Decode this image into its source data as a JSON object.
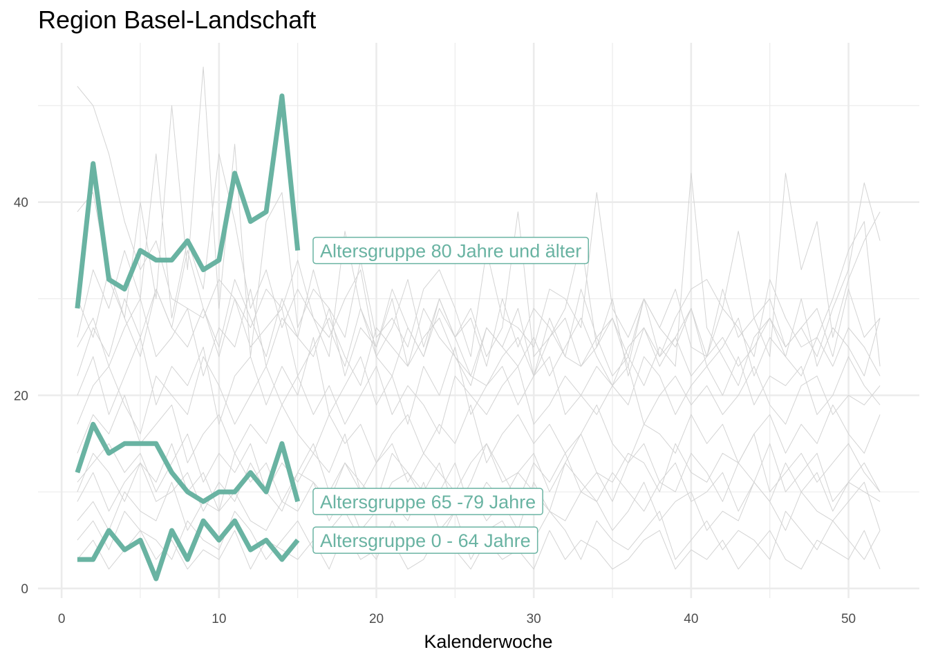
{
  "chart_data": {
    "type": "line",
    "title": "Region Basel-Landschaft",
    "xlabel": "Kalenderwoche",
    "ylabel": "",
    "xlim": [
      -1.5,
      54.5
    ],
    "ylim": [
      -1,
      56.5
    ],
    "x_ticks": [
      0,
      10,
      20,
      30,
      40,
      50
    ],
    "y_ticks": [
      0,
      20,
      40
    ],
    "x_minor_ticks": [
      5,
      15,
      25,
      35,
      45
    ],
    "y_minor_ticks": [
      10,
      30,
      50
    ],
    "grid": true,
    "highlight_color": "#69b3a2",
    "background_color": "#d3d3d3",
    "highlight_series": [
      {
        "name": "Altersgruppe 80 Jahre und älter",
        "x": [
          1,
          2,
          3,
          4,
          5,
          6,
          7,
          8,
          9,
          10,
          11,
          12,
          13,
          14,
          15
        ],
        "values": [
          29,
          44,
          32,
          31,
          35,
          34,
          34,
          36,
          33,
          34,
          43,
          38,
          39,
          51,
          35
        ]
      },
      {
        "name": "Altersgruppe 65 -79 Jahre",
        "x": [
          1,
          2,
          3,
          4,
          5,
          6,
          7,
          8,
          9,
          10,
          11,
          12,
          13,
          14,
          15
        ],
        "values": [
          12,
          17,
          14,
          15,
          15,
          15,
          12,
          10,
          9,
          10,
          10,
          12,
          10,
          15,
          9
        ]
      },
      {
        "name": "Altersgruppe 0 - 64 Jahre",
        "x": [
          1,
          2,
          3,
          4,
          5,
          6,
          7,
          8,
          9,
          10,
          11,
          12,
          13,
          14,
          15
        ],
        "values": [
          3,
          3,
          6,
          4,
          5,
          1,
          6,
          3,
          7,
          5,
          7,
          4,
          5,
          3,
          5
        ]
      }
    ],
    "background_series": [
      {
        "x_start": 1,
        "values": [
          52,
          50,
          45,
          38,
          33,
          36,
          30,
          29,
          28,
          32,
          30,
          27,
          31,
          29,
          34,
          28,
          26,
          30,
          33,
          24,
          22,
          27,
          24,
          29,
          26,
          22,
          21,
          24,
          26,
          22,
          28,
          24,
          23,
          26,
          22,
          24,
          21,
          25,
          23,
          43,
          27,
          24,
          21,
          26,
          28,
          25,
          27,
          24,
          29,
          33,
          42,
          36
        ]
      },
      {
        "x_start": 1,
        "values": [
          39,
          41,
          32,
          28,
          40,
          30,
          50,
          33,
          54,
          29,
          46,
          24,
          38,
          41,
          27,
          31,
          29,
          26,
          34,
          26,
          28,
          25,
          31,
          33,
          29,
          24,
          35,
          28,
          27,
          25,
          31,
          30,
          27,
          41,
          29,
          26,
          30,
          24,
          28,
          31,
          32,
          29,
          37,
          28,
          24,
          43,
          33,
          38,
          26,
          32,
          36,
          39
        ]
      },
      {
        "x_start": 1,
        "values": [
          26,
          33,
          29,
          35,
          30,
          45,
          28,
          36,
          31,
          45,
          38,
          29,
          33,
          27,
          31,
          28,
          24,
          37,
          29,
          24,
          27,
          32,
          25,
          30,
          26,
          29,
          24,
          27,
          39,
          24,
          26,
          29,
          36,
          25,
          28,
          24,
          30,
          27,
          31,
          25,
          24,
          29,
          27,
          24,
          32,
          28,
          25,
          26,
          30,
          35,
          38,
          23
        ]
      },
      {
        "x_start": 1,
        "values": [
          22,
          27,
          24,
          30,
          26,
          31,
          27,
          25,
          29,
          24,
          30,
          25,
          27,
          29,
          22,
          25,
          28,
          24,
          21,
          27,
          25,
          23,
          29,
          26,
          24,
          22,
          27,
          25,
          23,
          26,
          22,
          25,
          28,
          24,
          21,
          25,
          27,
          23,
          26,
          22,
          24,
          26,
          23,
          25,
          28,
          24,
          22,
          26,
          23,
          27,
          25,
          22
        ]
      },
      {
        "x_start": 1,
        "values": [
          20,
          24,
          18,
          22,
          26,
          19,
          23,
          21,
          25,
          17,
          22,
          24,
          19,
          23,
          20,
          26,
          18,
          21,
          24,
          19,
          22,
          17,
          23,
          20,
          25,
          18,
          21,
          23,
          19,
          22,
          24,
          18,
          20,
          23,
          21,
          19,
          24,
          22,
          18,
          21,
          23,
          20,
          24,
          19,
          22,
          21,
          23,
          18,
          20,
          24,
          21,
          19
        ]
      },
      {
        "x_start": 1,
        "values": [
          17,
          21,
          23,
          19,
          16,
          22,
          20,
          18,
          24,
          21,
          17,
          20,
          23,
          19,
          22,
          18,
          21,
          17,
          20,
          23,
          18,
          21,
          19,
          16,
          22,
          20,
          18,
          21,
          23,
          17,
          19,
          22,
          20,
          18,
          21,
          23,
          17,
          20,
          22,
          19,
          21,
          18,
          20,
          23,
          19,
          17,
          21,
          22,
          18,
          20,
          19,
          21
        ]
      },
      {
        "x_start": 1,
        "values": [
          14,
          18,
          16,
          20,
          15,
          17,
          19,
          13,
          16,
          18,
          14,
          17,
          15,
          19,
          16,
          14,
          18,
          15,
          17,
          13,
          16,
          18,
          14,
          17,
          15,
          19,
          13,
          16,
          18,
          15,
          17,
          14,
          16,
          19,
          15,
          13,
          17,
          16,
          14,
          18,
          15,
          17,
          13,
          16,
          18,
          14,
          17,
          15,
          19,
          16,
          14,
          18
        ]
      },
      {
        "x_start": 1,
        "values": [
          11,
          13,
          15,
          12,
          14,
          10,
          13,
          16,
          11,
          14,
          12,
          15,
          10,
          13,
          11,
          14,
          12,
          16,
          10,
          13,
          15,
          11,
          14,
          12,
          10,
          13,
          15,
          11,
          12,
          14,
          10,
          13,
          16,
          12,
          11,
          14,
          13,
          10,
          15,
          12,
          11,
          14,
          13,
          16,
          10,
          12,
          14,
          11,
          13,
          15,
          12,
          10
        ]
      },
      {
        "x_start": 1,
        "values": [
          9,
          12,
          8,
          11,
          13,
          9,
          10,
          12,
          8,
          11,
          9,
          13,
          10,
          8,
          12,
          11,
          9,
          13,
          10,
          8,
          11,
          12,
          9,
          10,
          13,
          8,
          11,
          9,
          12,
          10,
          8,
          13,
          11,
          9,
          12,
          10,
          8,
          11,
          13,
          9,
          10,
          12,
          8,
          11,
          9,
          13,
          10,
          12,
          8,
          11,
          10,
          9
        ]
      },
      {
        "x_start": 1,
        "values": [
          7,
          9,
          6,
          10,
          8,
          7,
          11,
          6,
          9,
          8,
          10,
          7,
          6,
          9,
          8,
          11,
          7,
          10,
          6,
          8,
          9,
          7,
          11,
          6,
          8,
          10,
          7,
          9,
          6,
          11,
          8,
          7,
          10,
          9,
          6,
          8,
          11,
          7,
          9,
          10,
          6,
          8,
          7,
          11,
          9,
          6,
          10,
          8,
          7,
          9,
          11,
          6
        ]
      },
      {
        "x_start": 1,
        "values": [
          5,
          7,
          4,
          8,
          6,
          5,
          3,
          7,
          5,
          4,
          8,
          6,
          3,
          5,
          7,
          4,
          6,
          8,
          5,
          3,
          7,
          4,
          6,
          5,
          8,
          3,
          6,
          7,
          4,
          5,
          8,
          6,
          3,
          7,
          5,
          4,
          6,
          8,
          3,
          5,
          7,
          4,
          6,
          5,
          3,
          8,
          6,
          4,
          7,
          5,
          3,
          6
        ]
      },
      {
        "x_start": 1,
        "values": [
          3,
          5,
          2,
          4,
          6,
          3,
          5,
          2,
          4,
          3,
          6,
          2,
          5,
          4,
          3,
          5,
          2,
          6,
          3,
          4,
          5,
          2,
          3,
          6,
          4,
          2,
          5,
          3,
          4,
          2,
          6,
          3,
          5,
          4,
          2,
          3,
          5,
          6,
          2,
          4,
          3,
          5,
          2,
          4,
          6,
          3,
          2,
          5,
          4,
          3,
          6,
          2
        ]
      },
      {
        "x_start": 1,
        "values": [
          30,
          26,
          33,
          28,
          24,
          31,
          27,
          35,
          29,
          25,
          32,
          28,
          24,
          30,
          26,
          33,
          27,
          23,
          29,
          25,
          31,
          27,
          24,
          30,
          26,
          28,
          23,
          30,
          25,
          29,
          27,
          24,
          31,
          26,
          28,
          23,
          30,
          27,
          25,
          29,
          24,
          31,
          26,
          28,
          30,
          25,
          27,
          29,
          24,
          31,
          26,
          28
        ]
      },
      {
        "x_start": 1,
        "values": [
          25,
          28,
          23,
          27,
          30,
          24,
          26,
          29,
          22,
          27,
          25,
          31,
          23,
          28,
          26,
          24,
          29,
          22,
          27,
          25,
          30,
          23,
          26,
          28,
          24,
          21,
          27,
          25,
          29,
          22,
          26,
          28,
          23,
          25,
          30,
          22,
          27,
          24,
          26,
          29,
          23,
          25,
          28,
          22,
          26,
          24,
          30,
          23,
          27,
          25,
          22,
          28
        ]
      },
      {
        "x_start": 1,
        "values": [
          10,
          14,
          12,
          9,
          13,
          11,
          15,
          10,
          12,
          8,
          14,
          11,
          13,
          9,
          12,
          15,
          10,
          13,
          11,
          9,
          14,
          12,
          10,
          13,
          8,
          11,
          15,
          12,
          9,
          13,
          11,
          14,
          10,
          12,
          9,
          13,
          15,
          11,
          10,
          14,
          12,
          9,
          13,
          11,
          15,
          10,
          12,
          14,
          9,
          11,
          13,
          10
        ]
      }
    ]
  }
}
